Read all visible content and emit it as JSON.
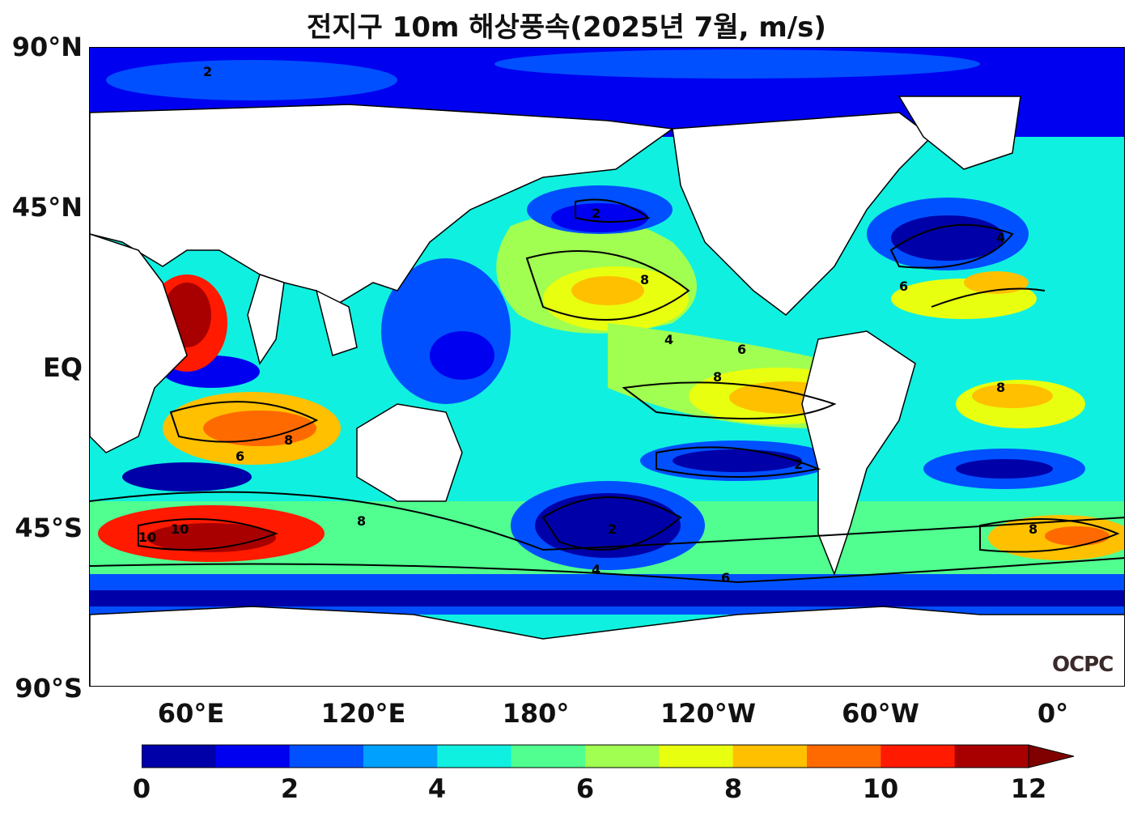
{
  "title": "전지구 10m 해상풍속(2025년 7월, m/s)",
  "lat_labels": [
    "90°N",
    "45°N",
    "EQ",
    "45°S",
    "90°S"
  ],
  "lon_labels": [
    "60°E",
    "120°E",
    "180°",
    "120°W",
    "60°W",
    "0°"
  ],
  "colorbar": {
    "ticks": [
      "0",
      "2",
      "4",
      "6",
      "8",
      "10",
      "12"
    ],
    "min": 0,
    "max": 12,
    "step": 1,
    "colors": [
      "#0000a8",
      "#0000f0",
      "#0050ff",
      "#00a0ff",
      "#10f0e0",
      "#50ff90",
      "#a0ff50",
      "#e8ff10",
      "#ffc000",
      "#ff6a00",
      "#ff1a00",
      "#a80000"
    ],
    "extend": "max",
    "extend_color": "#800000"
  },
  "logo": "OCPC",
  "land_color": "#ffffff"
}
